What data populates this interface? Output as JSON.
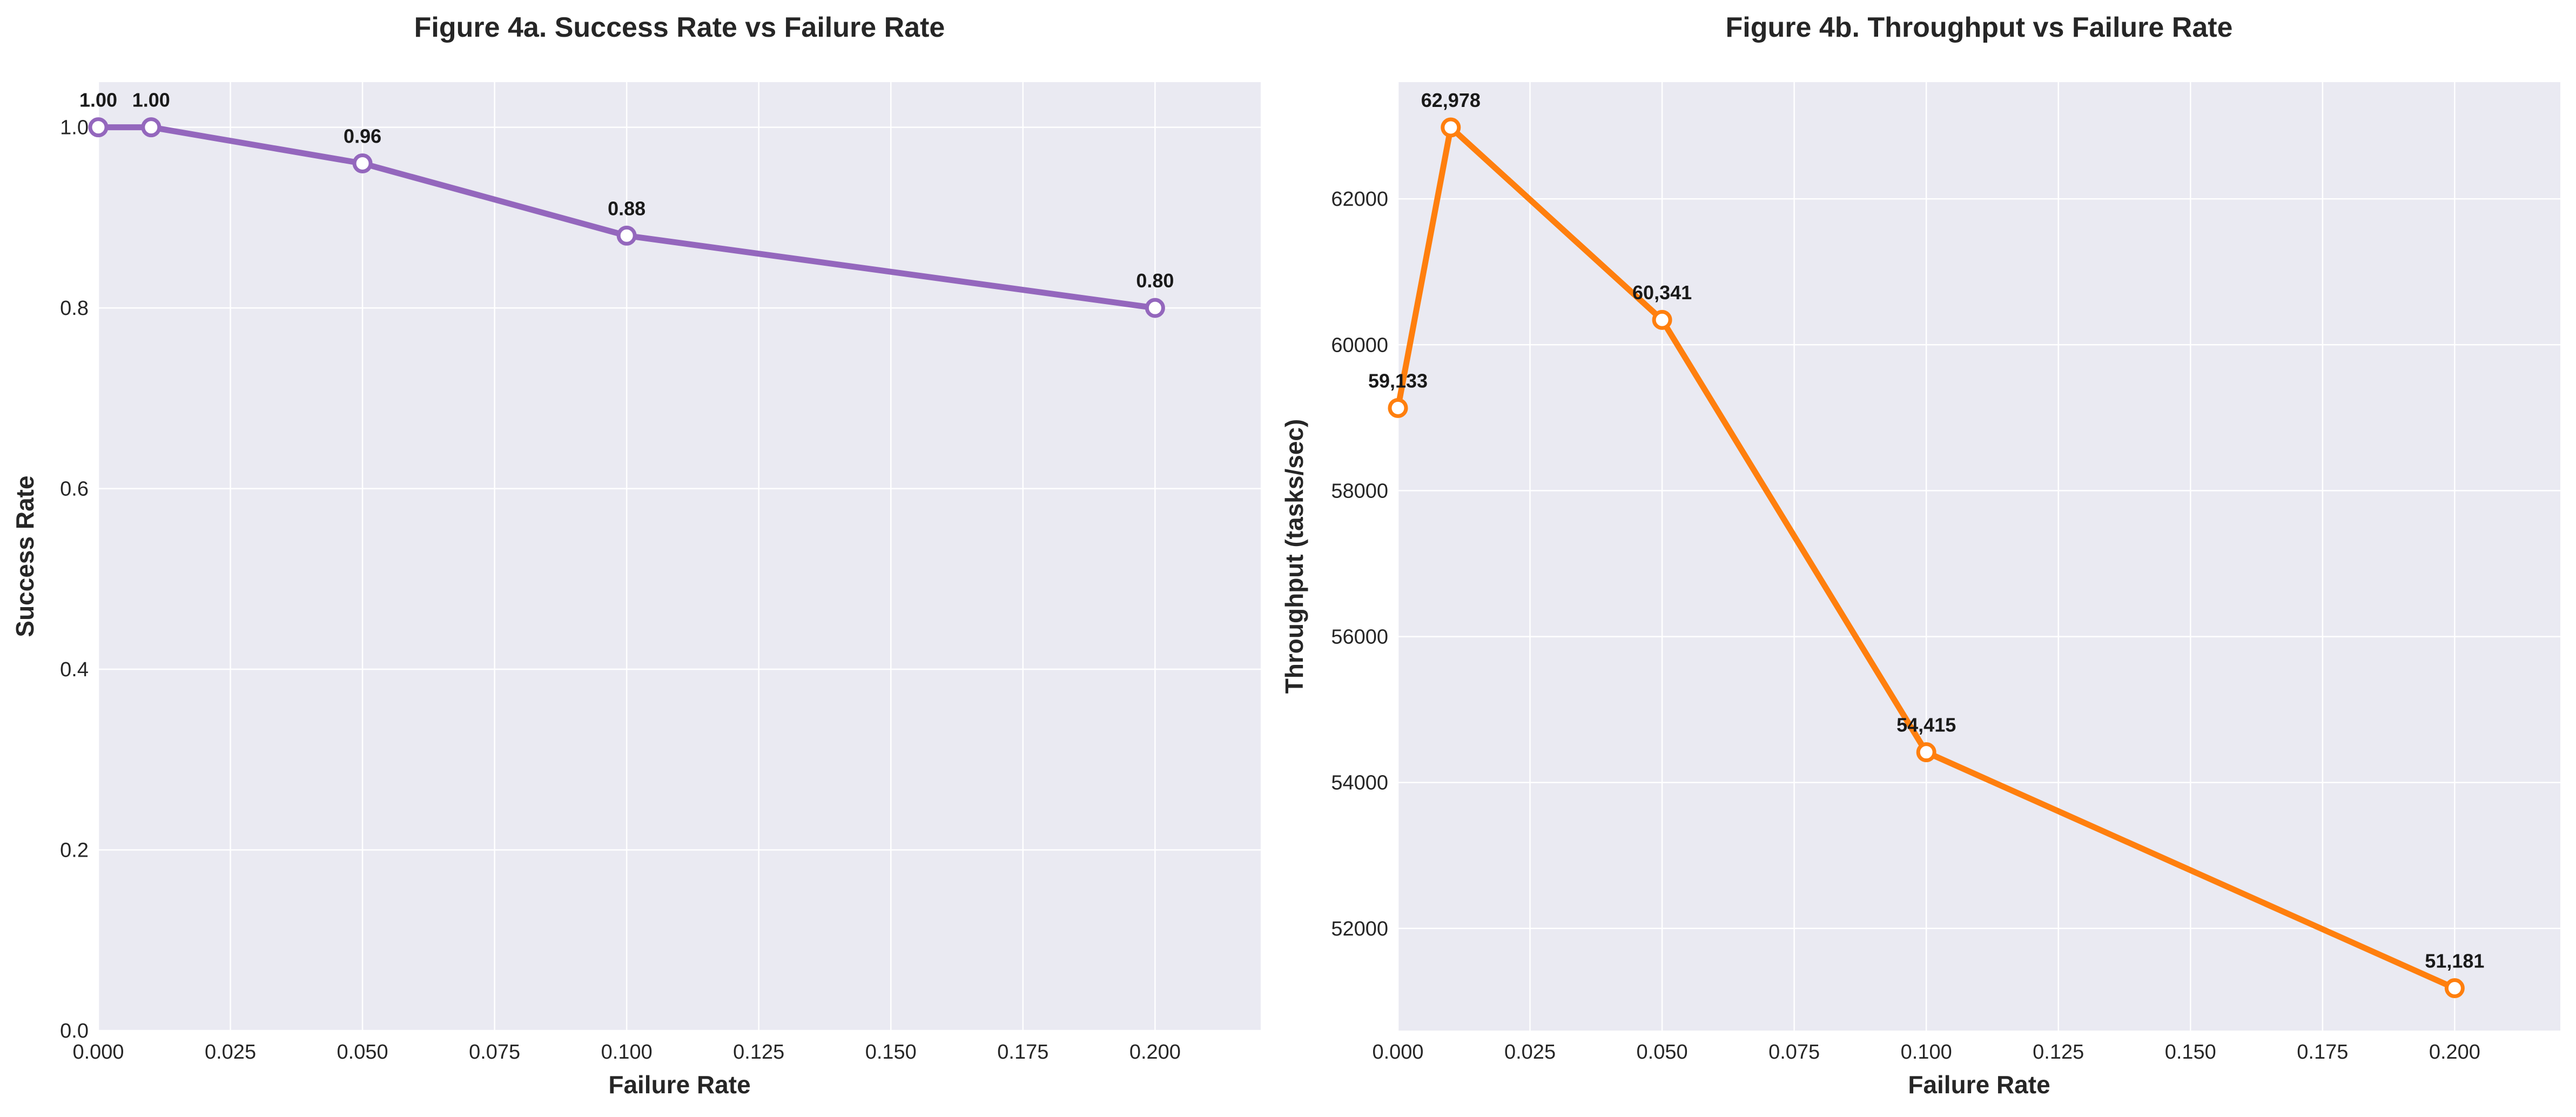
{
  "chart_data": [
    {
      "type": "line",
      "title": "Figure 4a. Success Rate vs Failure Rate",
      "xlabel": "Failure Rate",
      "ylabel": "Success Rate",
      "x": [
        0.0,
        0.01,
        0.05,
        0.1,
        0.2
      ],
      "series": [
        {
          "values": [
            1.0,
            1.0,
            0.96,
            0.88,
            0.8
          ],
          "labels": [
            "1.00",
            "1.00",
            "0.96",
            "0.88",
            "0.80"
          ],
          "color": "#9467bd"
        }
      ],
      "xlim": [
        0.0,
        0.22
      ],
      "ylim": [
        0.0,
        1.05
      ],
      "xticks": [
        0.0,
        0.025,
        0.05,
        0.075,
        0.1,
        0.125,
        0.15,
        0.175,
        0.2
      ],
      "xtick_labels": [
        "0.000",
        "0.025",
        "0.050",
        "0.075",
        "0.100",
        "0.125",
        "0.150",
        "0.175",
        "0.200"
      ],
      "yticks": [
        0.0,
        0.2,
        0.4,
        0.6,
        0.8,
        1.0
      ],
      "ytick_labels": [
        "0.0",
        "0.2",
        "0.4",
        "0.6",
        "0.8",
        "1.0"
      ],
      "grid": true
    },
    {
      "type": "line",
      "title": "Figure 4b. Throughput vs Failure Rate",
      "xlabel": "Failure Rate",
      "ylabel": "Throughput (tasks/sec)",
      "x": [
        0.0,
        0.01,
        0.05,
        0.1,
        0.2
      ],
      "series": [
        {
          "values": [
            59133,
            62978,
            60341,
            54415,
            51181
          ],
          "labels": [
            "59,133",
            "62,978",
            "60,341",
            "54,415",
            "51,181"
          ],
          "color": "#ff7f0e"
        }
      ],
      "xlim": [
        0.0,
        0.22
      ],
      "ylim": [
        50600,
        63600
      ],
      "xticks": [
        0.0,
        0.025,
        0.05,
        0.075,
        0.1,
        0.125,
        0.15,
        0.175,
        0.2
      ],
      "xtick_labels": [
        "0.000",
        "0.025",
        "0.050",
        "0.075",
        "0.100",
        "0.125",
        "0.150",
        "0.175",
        "0.200"
      ],
      "yticks": [
        52000,
        54000,
        56000,
        58000,
        60000,
        62000
      ],
      "ytick_labels": [
        "52000",
        "54000",
        "56000",
        "58000",
        "60000",
        "62000"
      ],
      "grid": true
    }
  ]
}
